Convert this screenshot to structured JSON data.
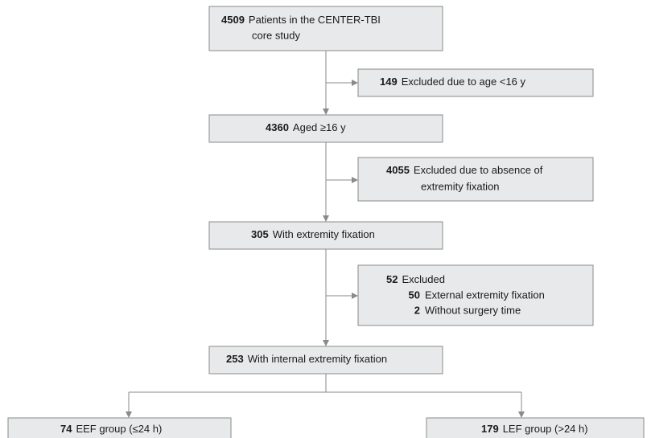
{
  "nodes": [
    {
      "count": 4509,
      "lines": [
        "Patients in the CENTER-TBI",
        "core study"
      ]
    },
    {
      "count": 149,
      "lines": [
        "Excluded due to age <16 y"
      ]
    },
    {
      "count": 4360,
      "lines": [
        "Aged ≥16 y"
      ]
    },
    {
      "count": 4055,
      "lines": [
        "Excluded due to absence of",
        "extremity fixation"
      ]
    },
    {
      "count": 305,
      "lines": [
        "With extremity fixation"
      ]
    },
    {
      "count": 52,
      "lines": [
        "Excluded"
      ],
      "items": [
        {
          "count": 50,
          "label": "External extremity fixation"
        },
        {
          "count": 2,
          "label": "Without surgery time"
        }
      ]
    },
    {
      "count": 253,
      "lines": [
        "With internal extremity fixation"
      ]
    },
    {
      "count": 74,
      "lines": [
        "EEF group (≤24 h)"
      ]
    },
    {
      "count": 179,
      "lines": [
        "LEF group (>24 h)"
      ]
    }
  ]
}
